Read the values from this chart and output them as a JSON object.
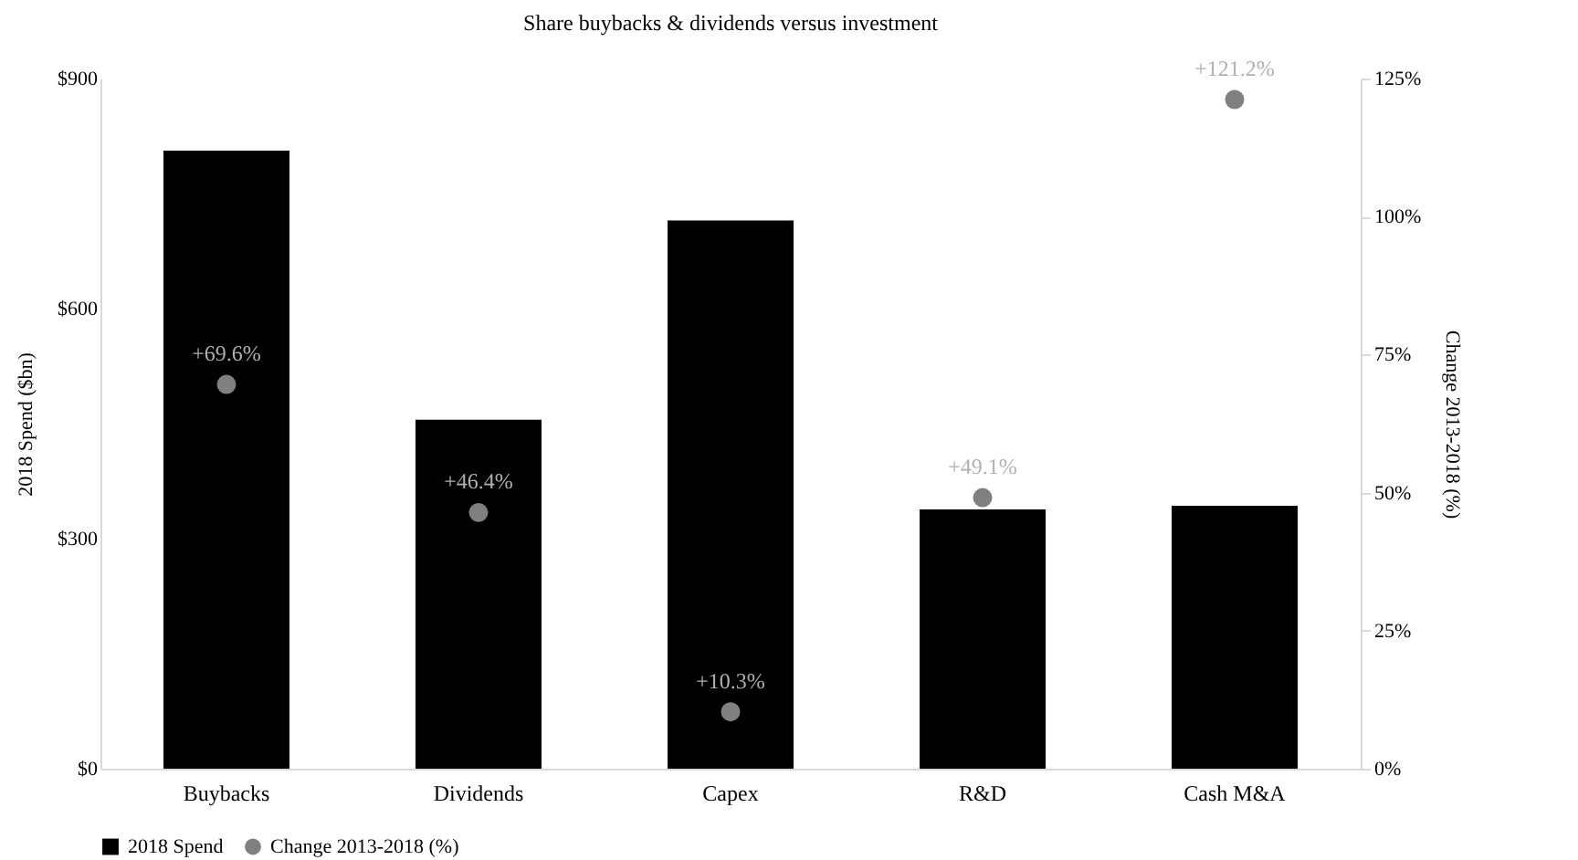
{
  "chart_data": {
    "type": "bar",
    "title": "Share buybacks & dividends versus investment",
    "ylabel": "2018 Spend ($bn)",
    "y2label": "Change 2013-2018 (%)",
    "categories": [
      "Buybacks",
      "Dividends",
      "Capex",
      "R&D",
      "Cash M&A"
    ],
    "series": [
      {
        "name": "2018 Spend",
        "type": "bar",
        "color": "#000000",
        "values": [
          806,
          455,
          715,
          338,
          343
        ]
      },
      {
        "name": "Change 2013-2018 (%)",
        "type": "scatter",
        "axis": "y2",
        "marker": "circle",
        "color": "#808080",
        "values": [
          69.6,
          46.4,
          10.3,
          49.1,
          121.2
        ],
        "value_labels": [
          "+69.6%",
          "+46.4%",
          "+10.3%",
          "+49.1%",
          "+121.2%"
        ]
      }
    ],
    "ylim": [
      0,
      900
    ],
    "yticks": [
      {
        "value": 0,
        "label": "$0"
      },
      {
        "value": 300,
        "label": "$300"
      },
      {
        "value": 600,
        "label": "$600"
      },
      {
        "value": 900,
        "label": "$900"
      }
    ],
    "y2lim": [
      0,
      125
    ],
    "y2ticks": [
      {
        "value": 0,
        "label": "0%"
      },
      {
        "value": 25,
        "label": "25%"
      },
      {
        "value": 50,
        "label": "50%"
      },
      {
        "value": 75,
        "label": "75%"
      },
      {
        "value": 100,
        "label": "100%"
      },
      {
        "value": 125,
        "label": "125%"
      }
    ],
    "grid": false,
    "legend": "bottom"
  }
}
